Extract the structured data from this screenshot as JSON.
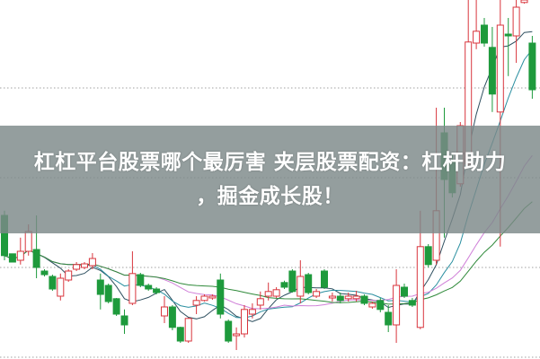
{
  "title": {
    "line1": "杠杠平台股票哪个最厉害 夹层股票配资：杠杆助力",
    "line2": "，掘金成长股！"
  },
  "colors": {
    "up": "#d8353d",
    "down": "#1e9a3c",
    "grid": "#a0a0a0",
    "ma": [
      "#2f5060",
      "#2a8fa0",
      "#d080d8",
      "#2f8a3a"
    ],
    "banner": "#7d8989"
  },
  "chart_data": {
    "type": "candlestick",
    "grid": "horizontal-dotted",
    "ylim": [
      0,
      100
    ],
    "grid_values": [
      25,
      50,
      75,
      100
    ],
    "moving_averages": [
      5,
      10,
      20,
      30
    ],
    "candles_ochl": [
      [
        40,
        28.8,
        41.3,
        27.5
      ],
      [
        29.3,
        27,
        29.3,
        27
      ],
      [
        27.5,
        30,
        33.8,
        26.3
      ],
      [
        30,
        35.5,
        37.5,
        28.8
      ],
      [
        30.5,
        25.5,
        40,
        22.5
      ],
      [
        24.5,
        23.5,
        25,
        23
      ],
      [
        23,
        19.5,
        23.5,
        19
      ],
      [
        17.5,
        22.5,
        23.8,
        16.3
      ],
      [
        22,
        24.5,
        25,
        21.5
      ],
      [
        25,
        26.3,
        27,
        24.5
      ],
      [
        25.5,
        26.5,
        27,
        25
      ],
      [
        26,
        28,
        29.5,
        25
      ],
      [
        22,
        18,
        23.8,
        13.8
      ],
      [
        20.5,
        16,
        21,
        15.5
      ],
      [
        16.8,
        12.5,
        17,
        12
      ],
      [
        12,
        9.5,
        13.8,
        7
      ],
      [
        15.5,
        23.8,
        30,
        15
      ],
      [
        23.5,
        20.5,
        24,
        20
      ],
      [
        20.5,
        19.5,
        21,
        19
      ],
      [
        19.5,
        18.5,
        20,
        18
      ],
      [
        12,
        14.5,
        17.5,
        10
      ],
      [
        14.5,
        8.8,
        15,
        8
      ],
      [
        8.8,
        5,
        9,
        4.5
      ],
      [
        5,
        11.3,
        11.5,
        4.5
      ],
      [
        15,
        16.3,
        17.5,
        12.5
      ],
      [
        16.3,
        17.5,
        18,
        16
      ],
      [
        17,
        17.5,
        18,
        16.5
      ],
      [
        22,
        12.5,
        23.8,
        11.3
      ],
      [
        10.5,
        5,
        11,
        4.5
      ],
      [
        6.5,
        7,
        8.8,
        2.5
      ],
      [
        7,
        13.8,
        15,
        6
      ],
      [
        12.5,
        13.8,
        15.5,
        11.3
      ],
      [
        15,
        16.8,
        18.8,
        13.8
      ],
      [
        17.5,
        18.8,
        21.3,
        16.3
      ],
      [
        17.5,
        19.3,
        20,
        17
      ],
      [
        21.3,
        20,
        21.8,
        19.5
      ],
      [
        24.5,
        18.8,
        25,
        18.5
      ],
      [
        17.5,
        23,
        27.5,
        15.5
      ],
      [
        23.5,
        18.5,
        24,
        18
      ],
      [
        17.5,
        18.8,
        19.5,
        17
      ],
      [
        24.5,
        20,
        25,
        19.5
      ],
      [
        17,
        17.5,
        18.5,
        16
      ],
      [
        17.5,
        16.3,
        18.5,
        15.5
      ],
      [
        16.8,
        17.5,
        18.5,
        16
      ],
      [
        16.8,
        17.5,
        19,
        16
      ],
      [
        17.5,
        15.5,
        18,
        15
      ],
      [
        14.5,
        15.5,
        16,
        14
      ],
      [
        16.3,
        13.8,
        17,
        13
      ],
      [
        13,
        9.5,
        15,
        7.5
      ],
      [
        9.5,
        20.5,
        25,
        4.5
      ],
      [
        20,
        17.5,
        21,
        17
      ],
      [
        16.3,
        15,
        17,
        14.5
      ],
      [
        8.8,
        31.3,
        41.3,
        8.3
      ],
      [
        31.3,
        26.3,
        32,
        25.5
      ],
      [
        27.5,
        41.3,
        70,
        26.3
      ],
      [
        63,
        50,
        70,
        33.8
      ],
      [
        55,
        46.3,
        57,
        45
      ],
      [
        48.8,
        65,
        66,
        48
      ],
      [
        54.3,
        88.3,
        100,
        53.8
      ],
      [
        88,
        91.3,
        100,
        86.3
      ],
      [
        93,
        88,
        95,
        87
      ],
      [
        86.8,
        73.8,
        92.5,
        68.8
      ],
      [
        68.8,
        93,
        100,
        31.3
      ],
      [
        90.5,
        90,
        95,
        78.8
      ],
      [
        90,
        98,
        100,
        82.5
      ],
      [
        99.3,
        100,
        100,
        99
      ],
      [
        88,
        75,
        90,
        72.5
      ]
    ]
  }
}
